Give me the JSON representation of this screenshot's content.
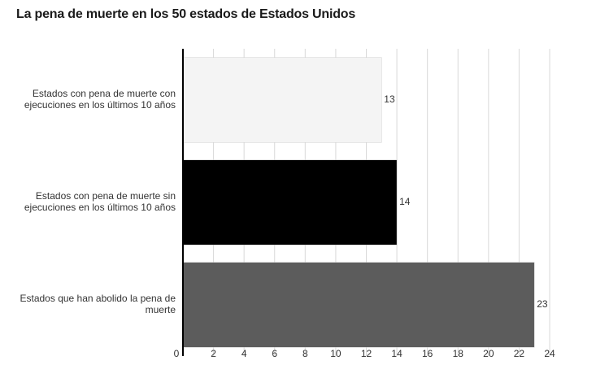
{
  "chart_data": {
    "type": "bar",
    "orientation": "horizontal",
    "title": "La pena de muerte en los 50 estados de Estados Unidos",
    "xlabel": "",
    "ylabel": "",
    "xlim": [
      0,
      24
    ],
    "xticks": [
      "0",
      "2",
      "4",
      "6",
      "8",
      "10",
      "12",
      "14",
      "16",
      "18",
      "20",
      "22",
      "24"
    ],
    "grid": true,
    "categories": [
      [
        "Estados con pena de muerte con",
        "ejecuciones en los últimos 10 años"
      ],
      [
        "Estados con pena de muerte sin",
        "ejecuciones en los últimos 10 años"
      ],
      [
        "Estados que han abolido la pena de",
        "muerte"
      ]
    ],
    "values": [
      13,
      14,
      23
    ],
    "value_labels": [
      "13",
      "14",
      "23"
    ],
    "colors": [
      "#f4f4f4",
      "#000000",
      "#5c5c5c"
    ]
  }
}
